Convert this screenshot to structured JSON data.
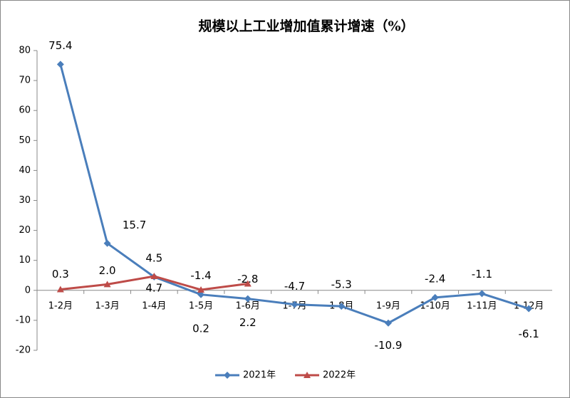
{
  "chart_data": {
    "type": "line",
    "title": "规模以上工业增加值累计增速（%）",
    "categories": [
      "1-2月",
      "1-3月",
      "1-4月",
      "1-5月",
      "1-6月",
      "1-7月",
      "1-8月",
      "1-9月",
      "1-10月",
      "1-11月",
      "1-12月"
    ],
    "series": [
      {
        "name": "2021年",
        "color": "#4a7ebb",
        "marker": "diamond",
        "values": [
          75.4,
          15.7,
          4.5,
          -1.4,
          -2.8,
          -4.7,
          -5.3,
          -10.9,
          -2.4,
          -1.1,
          -6.1
        ],
        "value_labels": [
          "75.4",
          "15.7",
          "4.5",
          "-1.4",
          "-2.8",
          "-4.7",
          "-5.3",
          "-10.9",
          "-2.4",
          "-1.1",
          "-6.1"
        ]
      },
      {
        "name": "2022年",
        "color": "#be4b48",
        "marker": "triangle",
        "values": [
          0.3,
          2.0,
          4.7,
          0.2,
          2.2,
          null,
          null,
          null,
          null,
          null,
          null
        ],
        "value_labels": [
          "0.3",
          "2.0",
          "4.7",
          "0.2",
          "2.2",
          null,
          null,
          null,
          null,
          null,
          null
        ]
      }
    ],
    "ylim": [
      -20,
      80
    ],
    "yticks": [
      -20,
      -10,
      0,
      10,
      20,
      30,
      40,
      50,
      60,
      70,
      80
    ],
    "grid": false,
    "legend": "bottom"
  }
}
